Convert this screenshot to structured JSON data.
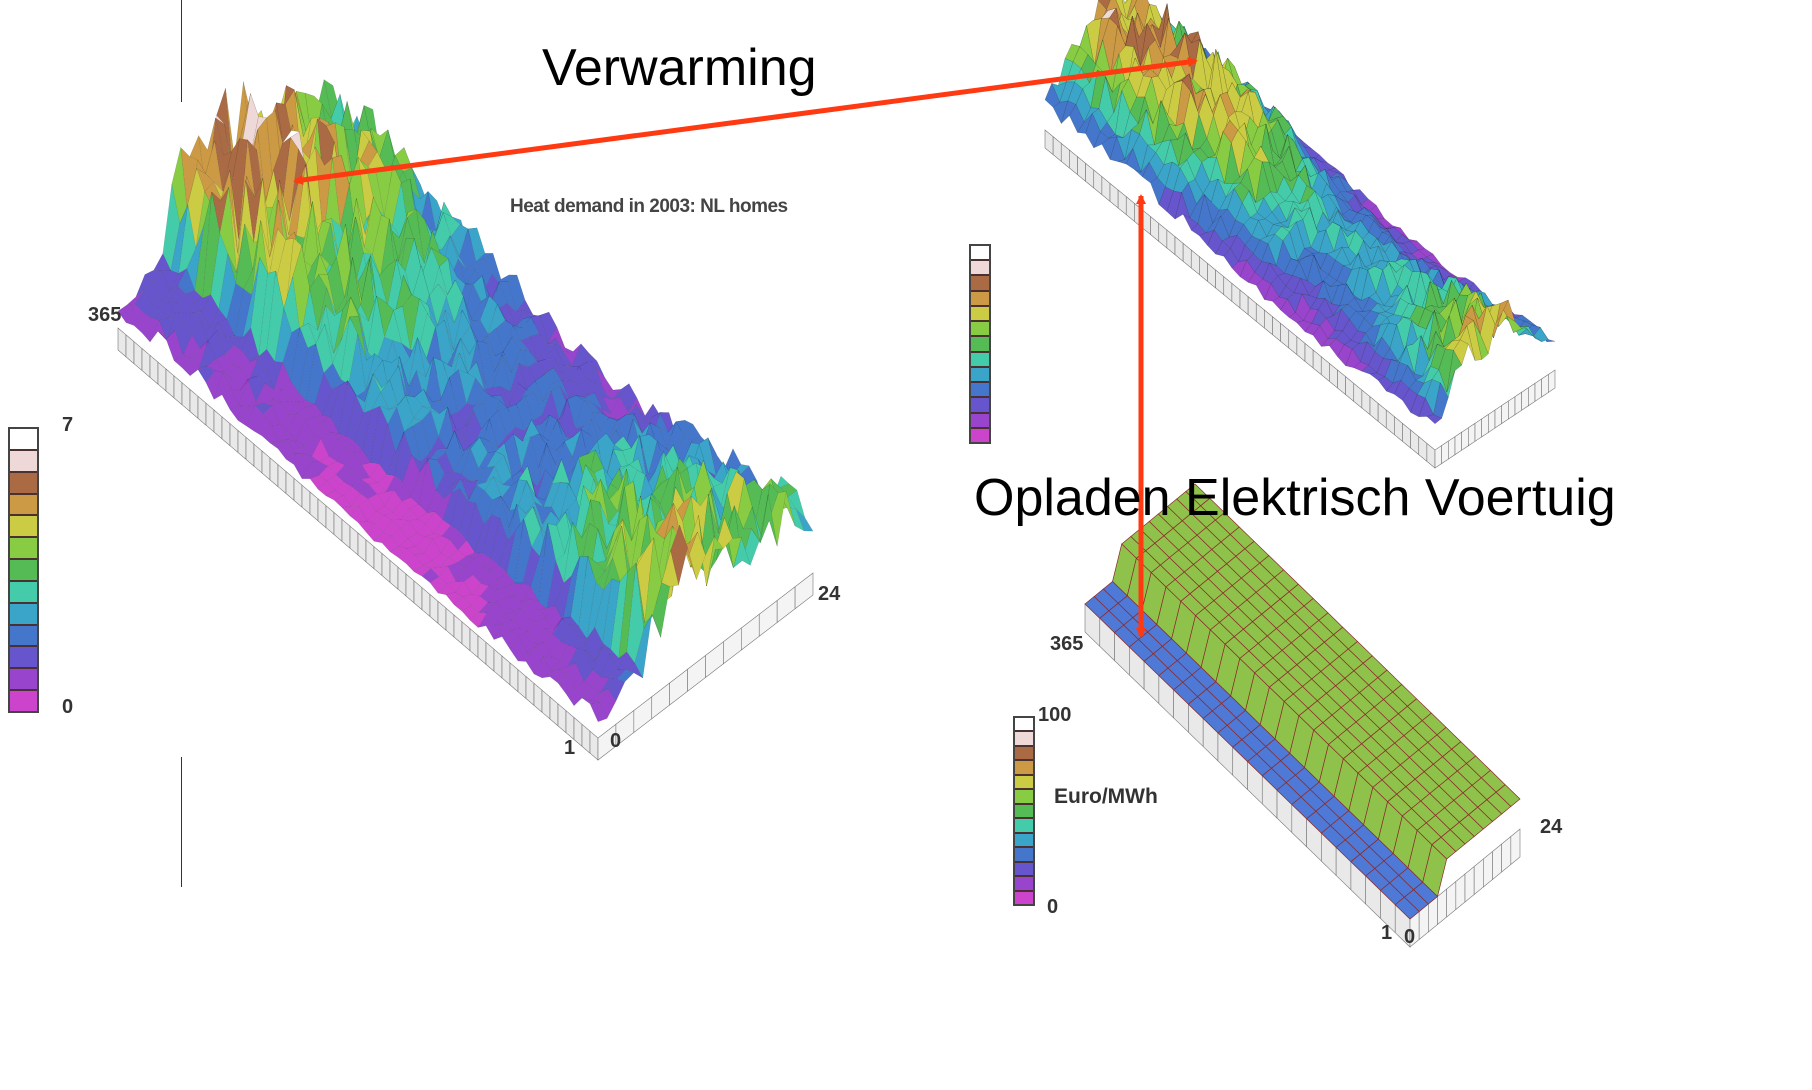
{
  "annotations": {
    "heating": "Verwarming",
    "ev_charging": "Opladen Elektrisch Voertuig"
  },
  "colors": {
    "arrow": "#ff3a12",
    "colorbar_steps": [
      "#cc44cc",
      "#9944cc",
      "#6655cc",
      "#4477cc",
      "#3aa5c8",
      "#44ccaa",
      "#55bb55",
      "#88cc44",
      "#cccc44",
      "#cc9944",
      "#aa6a44",
      "#efd8d8",
      "#ffffff"
    ]
  },
  "chart_data": [
    {
      "type": "surface3d",
      "title": "Heat demand in 2003: NL homes",
      "x_axis": {
        "label": "",
        "ticks": [
          "1",
          "365"
        ],
        "range": [
          1,
          365
        ]
      },
      "y_axis": {
        "label": "",
        "ticks": [
          "0",
          "24"
        ],
        "range": [
          0,
          24
        ]
      },
      "colorbar": {
        "ticks": [
          "7",
          "0"
        ],
        "range": [
          0,
          7
        ],
        "unit": ""
      },
      "pattern": "noisy high demand in winter days, low in summer, peak at morning/evening hours"
    },
    {
      "type": "surface3d",
      "title": "",
      "pattern": "electricity price surface with seasonal and daily peaks",
      "colorbar": {
        "ticks": [],
        "unit": ""
      }
    },
    {
      "type": "surface3d",
      "title": "",
      "x_axis": {
        "label": "",
        "ticks": [
          "1",
          "365"
        ],
        "range": [
          1,
          365
        ]
      },
      "y_axis": {
        "label": "",
        "ticks": [
          "0",
          "24"
        ],
        "range": [
          0,
          24
        ]
      },
      "colorbar": {
        "ticks": [
          "100",
          "0"
        ],
        "range": [
          0,
          100
        ],
        "unit": "Euro/MWh"
      },
      "pattern": "two-level tariff: low at night hours, high during day hours, constant across days"
    }
  ]
}
